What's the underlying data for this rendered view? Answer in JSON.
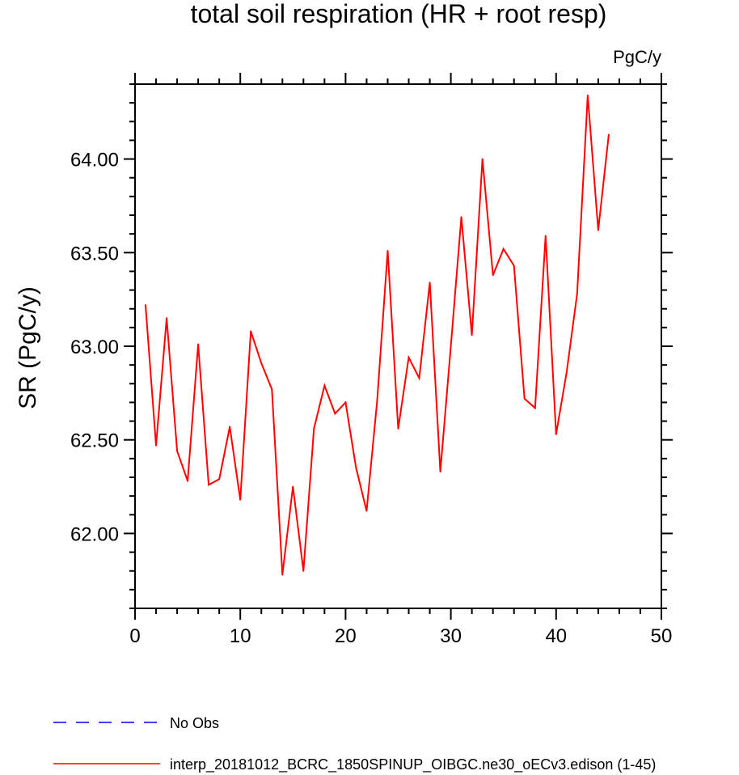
{
  "chart_data": {
    "type": "line",
    "title": "total soil respiration (HR + root resp)",
    "units": "PgC/y",
    "xlabel": "",
    "ylabel": "SR  (PgC/y)",
    "xlim": [
      0,
      50
    ],
    "ylim": [
      61.6,
      64.4
    ],
    "x_ticks": [
      "0",
      "10",
      "20",
      "30",
      "40",
      "50"
    ],
    "y_ticks": [
      "62.00",
      "62.50",
      "63.00",
      "63.50",
      "64.00"
    ],
    "grid": false,
    "legend_placement": "bottom",
    "series": [
      {
        "name": "interp_20181012_BCRC_1850SPINUP_OIBGC.ne30_oECv3.edison (1-45)",
        "color": "#ff0000",
        "dash": "solid",
        "x": [
          1,
          2,
          3,
          4,
          5,
          6,
          7,
          8,
          9,
          10,
          11,
          12,
          13,
          14,
          15,
          16,
          17,
          18,
          19,
          20,
          21,
          22,
          23,
          24,
          25,
          26,
          27,
          28,
          29,
          30,
          31,
          32,
          33,
          34,
          35,
          36,
          37,
          38,
          39,
          40,
          41,
          42,
          43,
          44,
          45
        ],
        "values": [
          63.22,
          62.47,
          63.15,
          62.44,
          62.28,
          63.01,
          62.26,
          62.29,
          62.57,
          62.18,
          63.08,
          62.91,
          62.77,
          61.78,
          62.25,
          61.8,
          62.56,
          62.79,
          62.64,
          62.7,
          62.35,
          62.12,
          62.71,
          63.51,
          62.56,
          62.94,
          62.83,
          63.34,
          62.33,
          63.0,
          63.69,
          63.06,
          64.0,
          63.38,
          63.52,
          63.43,
          62.72,
          62.67,
          63.59,
          62.53,
          62.86,
          63.28,
          64.34,
          63.62,
          64.13
        ]
      }
    ],
    "legend": [
      {
        "label": "No Obs",
        "color": "#0000ff",
        "dash": "dashed"
      },
      {
        "label": "interp_20181012_BCRC_1850SPINUP_OIBGC.ne30_oECv3.edison (1-45)",
        "color": "#ff0000",
        "dash": "solid"
      }
    ]
  }
}
